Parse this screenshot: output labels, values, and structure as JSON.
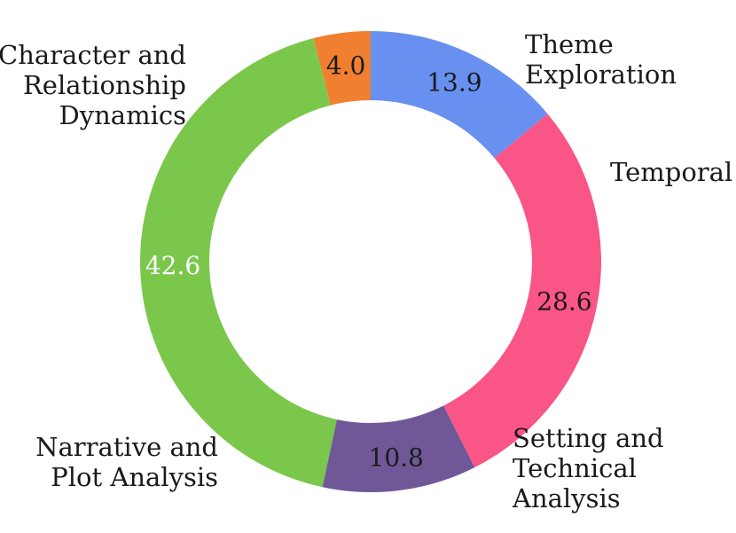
{
  "chart_data": {
    "type": "pie",
    "donut": true,
    "title": "",
    "start_angle_deg": 90,
    "direction": "counterclockwise",
    "slices": [
      {
        "label_lines": [
          "Theme",
          "Exploration"
        ],
        "value": 4.0,
        "value_text": "4.0",
        "color": "#F08030",
        "value_color": "#1a1a1a"
      },
      {
        "label_lines": [
          "Character and",
          "Relationship",
          "Dynamics"
        ],
        "value": 42.6,
        "value_text": "42.6",
        "color": "#7AC74C",
        "value_color": "#ffffff"
      },
      {
        "label_lines": [
          "Narrative and",
          "Plot Analysis"
        ],
        "value": 10.8,
        "value_text": "10.8",
        "color": "#705898",
        "value_color": "#1a1a1a"
      },
      {
        "label_lines": [
          "Setting and",
          "Technical",
          "Analysis"
        ],
        "value": 28.6,
        "value_text": "28.6",
        "color": "#F95587",
        "value_color": "#1a1a1a"
      },
      {
        "label_lines": [
          "Temporal"
        ],
        "value": 13.9,
        "value_text": "13.9",
        "color": "#6890F0",
        "value_color": "#1a1a1a"
      }
    ]
  }
}
